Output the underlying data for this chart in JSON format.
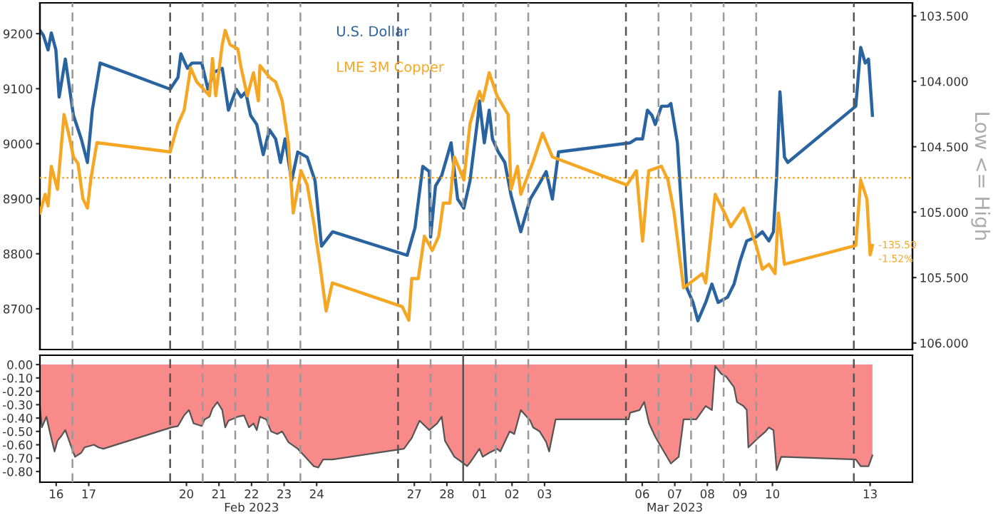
{
  "chart_data": [
    {
      "type": "line",
      "xlim": [
        "2023-02-16T00:00",
        "2023-03-14T19:12"
      ],
      "ylim": [
        8626,
        9256
      ],
      "yticks": [
        8700,
        8800,
        8900,
        9000,
        9100,
        9200
      ],
      "y2lim": [
        106.05,
        103.4
      ],
      "y2ticks": [
        {
          "value": 103.5,
          "label": "103.500"
        },
        {
          "value": 104.0,
          "label": "104.000"
        },
        {
          "value": 104.5,
          "label": "104.500"
        },
        {
          "value": 105.0,
          "label": "105.000"
        },
        {
          "value": 105.5,
          "label": "105.500"
        },
        {
          "value": 106.0,
          "label": "106.000"
        }
      ],
      "y2label": "Low <= High",
      "tick_labels": "y",
      "legend": "top",
      "series": [
        {
          "name": "U.S. Dollar",
          "color": "#2a64a0",
          "axis": "y2",
          "x": [
            "2023-02-16T00:00",
            "2023-02-16T02:38",
            "2023-02-16T06:00",
            "2023-02-16T08:24",
            "2023-02-16T11:46",
            "2023-02-16T14:10",
            "2023-02-16T18:43",
            "2023-02-17T00:43",
            "2023-02-17T06:29",
            "2023-02-17T11:02",
            "2023-02-17T14:38",
            "2023-02-17T20:24",
            "2023-02-20T00:00",
            "2023-02-20T05:46",
            "2023-02-20T07:55",
            "2023-02-20T12:43",
            "2023-02-20T16:05",
            "2023-02-20T23:17",
            "2023-02-21T03:50",
            "2023-02-21T08:24",
            "2023-02-21T14:24",
            "2023-02-21T18:58",
            "2023-02-22T00:43",
            "2023-02-22T04:19",
            "2023-02-22T07:41",
            "2023-02-22T11:17",
            "2023-02-22T15:50",
            "2023-02-22T20:38",
            "2023-02-23T01:12",
            "2023-02-23T05:46",
            "2023-02-23T09:22",
            "2023-02-23T12:43",
            "2023-02-23T17:31",
            "2023-02-23T22:05",
            "2023-02-24T05:02",
            "2023-02-24T10:48",
            "2023-02-24T15:36",
            "2023-02-24T23:46",
            "2023-02-27T06:43",
            "2023-02-27T12:29",
            "2023-02-27T18:14",
            "2023-02-27T23:02",
            "2023-02-28T00:00",
            "2023-02-28T03:36",
            "2023-02-28T08:10",
            "2023-02-28T15:07",
            "2023-02-28T19:55",
            "2023-03-01T00:29",
            "2023-03-01T05:02",
            "2023-03-01T11:02",
            "2023-03-01T12:00",
            "2023-03-01T15:36",
            "2023-03-01T19:12",
            "2023-03-01T21:36",
            "2023-03-02T01:55",
            "2023-03-02T06:43",
            "2023-03-02T11:17",
            "2023-03-02T18:29",
            "2023-03-03T01:26",
            "2023-03-03T07:12",
            "2023-03-03T13:12",
            "2023-03-03T17:46",
            "2023-03-03T22:19",
            "2023-03-06T03:07",
            "2023-03-06T07:41",
            "2023-03-06T12:14",
            "2023-03-06T15:50",
            "2023-03-06T19:12",
            "2023-03-06T21:36",
            "2023-03-07T02:10",
            "2023-03-07T06:58",
            "2023-03-07T09:07",
            "2023-03-07T13:55",
            "2023-03-07T16:05",
            "2023-03-07T20:53",
            "2023-03-08T01:26",
            "2023-03-08T05:02",
            "2023-03-08T10:48",
            "2023-03-08T15:22",
            "2023-03-08T19:55",
            "2023-03-09T02:53",
            "2023-03-09T07:41",
            "2023-03-09T12:14",
            "2023-03-09T17:02",
            "2023-03-10T00:00",
            "2023-03-10T04:34",
            "2023-03-10T09:22",
            "2023-03-10T12:43",
            "2023-03-10T15:07",
            "2023-03-10T17:31",
            "2023-03-10T20:53",
            "2023-03-10T23:17",
            "2023-03-13T01:26",
            "2023-03-13T05:02",
            "2023-03-13T08:24",
            "2023-03-13T10:48",
            "2023-03-13T13:41"
          ],
          "values": [
            103.61,
            103.65,
            103.76,
            103.63,
            103.76,
            104.12,
            103.83,
            104.26,
            104.44,
            104.62,
            104.22,
            103.86,
            104.06,
            103.97,
            103.79,
            103.9,
            103.86,
            103.86,
            104.06,
            103.93,
            103.9,
            104.22,
            104.06,
            104.12,
            104.08,
            104.26,
            104.33,
            104.56,
            104.37,
            104.44,
            104.62,
            104.44,
            104.76,
            104.54,
            104.58,
            104.76,
            105.26,
            105.15,
            105.33,
            105.12,
            104.65,
            104.69,
            105.19,
            104.8,
            104.72,
            104.47,
            104.9,
            104.97,
            104.76,
            104.26,
            104.15,
            104.47,
            104.22,
            104.44,
            104.54,
            104.62,
            104.87,
            105.15,
            104.9,
            104.8,
            104.69,
            104.9,
            104.54,
            104.47,
            104.44,
            104.44,
            104.22,
            104.26,
            104.33,
            104.19,
            104.19,
            104.17,
            104.47,
            104.83,
            105.58,
            105.69,
            105.83,
            105.69,
            105.55,
            105.69,
            105.65,
            105.55,
            105.37,
            105.22,
            105.19,
            105.15,
            105.22,
            105.15,
            104.72,
            104.08,
            104.58,
            104.62,
            104.19,
            103.74,
            103.86,
            103.83,
            104.26
          ]
        },
        {
          "name": "LME 3M Copper",
          "color": "#f5a623",
          "x": [
            "2023-02-16T00:00",
            "2023-02-16T03:50",
            "2023-02-16T06:00",
            "2023-02-16T08:24",
            "2023-02-16T12:58",
            "2023-02-16T17:46",
            "2023-02-16T21:07",
            "2023-02-17T00:43",
            "2023-02-17T04:05",
            "2023-02-17T07:41",
            "2023-02-17T11:02",
            "2023-02-17T13:26",
            "2023-02-17T18:00",
            "2023-02-20T00:00",
            "2023-02-20T05:46",
            "2023-02-20T10:19",
            "2023-02-20T15:07",
            "2023-02-20T19:41",
            "2023-02-21T00:14",
            "2023-02-21T05:02",
            "2023-02-21T07:12",
            "2023-02-21T09:36",
            "2023-02-21T14:24",
            "2023-02-21T16:34",
            "2023-02-21T20:10",
            "2023-02-22T01:55",
            "2023-02-22T04:19",
            "2023-02-22T08:53",
            "2023-02-22T13:26",
            "2023-02-22T17:02",
            "2023-02-22T18:14",
            "2023-02-23T01:12",
            "2023-02-23T05:46",
            "2023-02-23T10:34",
            "2023-02-23T15:07",
            "2023-02-23T18:43",
            "2023-02-24T00:29",
            "2023-02-24T05:02",
            "2023-02-24T09:50",
            "2023-02-24T14:24",
            "2023-02-24T18:58",
            "2023-02-24T23:31",
            "2023-02-27T03:07",
            "2023-02-27T07:55",
            "2023-02-27T10:05",
            "2023-02-27T14:53",
            "2023-02-27T19:26",
            "2023-02-28T01:12",
            "2023-02-28T06:00",
            "2023-02-28T09:22",
            "2023-02-28T14:10",
            "2023-02-28T17:31",
            "2023-03-01T00:29",
            "2023-03-01T05:02",
            "2023-03-01T12:00",
            "2023-03-01T14:24",
            "2023-03-01T19:12",
            "2023-03-02T00:58",
            "2023-03-02T09:07",
            "2023-03-02T11:17",
            "2023-03-02T16:05",
            "2023-03-02T18:29",
            "2023-03-03T03:36",
            "2023-03-03T10:34",
            "2023-03-03T17:46",
            "2023-03-06T00:43",
            "2023-03-06T07:41",
            "2023-03-06T12:14",
            "2023-03-06T16:48",
            "2023-03-07T02:10",
            "2023-03-07T06:58",
            "2023-03-07T11:31",
            "2023-03-07T18:29",
            "2023-03-08T08:24",
            "2023-03-08T10:48",
            "2023-03-08T17:46",
            "2023-03-09T00:43",
            "2023-03-09T05:17",
            "2023-03-09T14:38",
            "2023-03-10T00:00",
            "2023-03-10T04:34",
            "2023-03-10T09:22",
            "2023-03-10T13:55",
            "2023-03-10T16:19",
            "2023-03-10T20:53",
            "2023-03-13T01:26",
            "2023-03-13T05:02",
            "2023-03-13T09:36",
            "2023-03-13T12:00",
            "2023-03-13T13:41"
          ],
          "values": [
            8874,
            8908,
            8887,
            8959,
            8917,
            9053,
            9019,
            8976,
            8964,
            8900,
            8883,
            8934,
            9002,
            8985,
            9036,
            9061,
            9138,
            9112,
            9100,
            9087,
            9155,
            9087,
            9180,
            9206,
            9180,
            9172,
            9138,
            9087,
            9129,
            9078,
            9142,
            9121,
            9112,
            9078,
            9002,
            8874,
            8951,
            8925,
            8857,
            8781,
            8696,
            8747,
            8704,
            8679,
            8755,
            8755,
            8832,
            8806,
            8832,
            8892,
            8892,
            8976,
            8934,
            9036,
            9095,
            9078,
            9129,
            9087,
            9053,
            8917,
            8959,
            8908,
            8968,
            9019,
            8976,
            8925,
            8951,
            8823,
            8951,
            8959,
            8934,
            8874,
            8738,
            8764,
            8747,
            8908,
            8874,
            8849,
            8883,
            8815,
            8772,
            8781,
            8764,
            8874,
            8781,
            8815,
            8934,
            8900,
            8798,
            8815
          ]
        }
      ],
      "ref_lines": [
        {
          "axis": "y",
          "value": 8938,
          "color": "#f5a623",
          "line_style": "dotted"
        },
        {
          "axis": "x",
          "value": "2023-02-17T00:00",
          "color": "#999999",
          "line_style": "dashed"
        },
        {
          "axis": "x",
          "value": "2023-02-20T00:00",
          "color": "#555555",
          "line_style": "dashed"
        },
        {
          "axis": "x",
          "value": "2023-02-21T00:00",
          "color": "#999999",
          "line_style": "dashed"
        },
        {
          "axis": "x",
          "value": "2023-02-22T00:00",
          "color": "#999999",
          "line_style": "dashed"
        },
        {
          "axis": "x",
          "value": "2023-02-23T00:00",
          "color": "#999999",
          "line_style": "dashed"
        },
        {
          "axis": "x",
          "value": "2023-02-24T00:00",
          "color": "#999999",
          "line_style": "dashed"
        },
        {
          "axis": "x",
          "value": "2023-02-27T00:00",
          "color": "#555555",
          "line_style": "dashed"
        },
        {
          "axis": "x",
          "value": "2023-02-28T00:00",
          "color": "#999999",
          "line_style": "dashed"
        },
        {
          "axis": "x",
          "value": "2023-03-01T00:00",
          "color": "#999999",
          "line_style": "dashed"
        },
        {
          "axis": "x",
          "value": "2023-03-02T00:00",
          "color": "#999999",
          "line_style": "dashed"
        },
        {
          "axis": "x",
          "value": "2023-03-03T00:00",
          "color": "#999999",
          "line_style": "dashed"
        },
        {
          "axis": "x",
          "value": "2023-03-06T00:00",
          "color": "#555555",
          "line_style": "dashed"
        },
        {
          "axis": "x",
          "value": "2023-03-07T00:00",
          "color": "#999999",
          "line_style": "dashed"
        },
        {
          "axis": "x",
          "value": "2023-03-08T00:00",
          "color": "#999999",
          "line_style": "dashed"
        },
        {
          "axis": "x",
          "value": "2023-03-09T00:00",
          "color": "#999999",
          "line_style": "dashed"
        },
        {
          "axis": "x",
          "value": "2023-03-10T00:00",
          "color": "#999999",
          "line_style": "dashed"
        },
        {
          "axis": "x",
          "value": "2023-03-13T00:00",
          "color": "#555555",
          "line_style": "dashed"
        }
      ],
      "annotations": [
        "-135.50",
        "-1.52%"
      ]
    },
    {
      "type": "area",
      "xlim": [
        "2023-02-16T00:00",
        "2023-03-14T19:12"
      ],
      "ylim": [
        -0.88,
        0.07
      ],
      "xticks": [
        {
          "value": "2023-02-16T12:00",
          "label": "16"
        },
        {
          "value": "2023-02-17T12:00",
          "label": "17"
        },
        {
          "value": "2023-02-20T12:00",
          "label": "20"
        },
        {
          "value": "2023-02-21T12:00",
          "label": "21"
        },
        {
          "value": "2023-02-22T12:00",
          "label": "22\nFeb 2023"
        },
        {
          "value": "2023-02-23T12:00",
          "label": "23"
        },
        {
          "value": "2023-02-24T12:00",
          "label": "24"
        },
        {
          "value": "2023-02-27T12:00",
          "label": "27"
        },
        {
          "value": "2023-02-28T12:00",
          "label": "28"
        },
        {
          "value": "2023-03-01T12:00",
          "label": "01"
        },
        {
          "value": "2023-03-02T12:00",
          "label": "02"
        },
        {
          "value": "2023-03-03T12:00",
          "label": "03"
        },
        {
          "value": "2023-03-06T12:00",
          "label": "06"
        },
        {
          "value": "2023-03-07T12:00",
          "label": "07\nMar 2023"
        },
        {
          "value": "2023-03-08T12:00",
          "label": "08"
        },
        {
          "value": "2023-03-09T12:00",
          "label": "09"
        },
        {
          "value": "2023-03-10T12:00",
          "label": "10"
        },
        {
          "value": "2023-03-13T12:00",
          "label": "13"
        }
      ],
      "yticks": [
        {
          "value": 0,
          "label": "0.00"
        },
        {
          "value": -0.1,
          "label": "-0.10"
        },
        {
          "value": -0.2,
          "label": "-0.20"
        },
        {
          "value": -0.3,
          "label": "-0.30"
        },
        {
          "value": -0.4,
          "label": "-0.40"
        },
        {
          "value": -0.5,
          "label": "-0.50"
        },
        {
          "value": -0.6,
          "label": "-0.60"
        },
        {
          "value": -0.7,
          "label": "-0.70"
        },
        {
          "value": -0.8,
          "label": "-0.80"
        }
      ],
      "series": [
        {
          "color": "#f88a8a",
          "x": [
            "2023-02-16T00:00",
            "2023-02-16T01:26",
            "2023-02-16T04:48",
            "2023-02-16T07:12",
            "2023-02-16T10:48",
            "2023-02-16T12:58",
            "2023-02-16T15:22",
            "2023-02-16T18:43",
            "2023-02-17T00:43",
            "2023-02-17T01:55",
            "2023-02-17T06:29",
            "2023-02-17T08:53",
            "2023-02-17T15:50",
            "2023-02-17T19:12",
            "2023-02-17T22:48",
            "2023-02-20T00:58",
            "2023-02-20T05:46",
            "2023-02-20T10:19",
            "2023-02-20T13:55",
            "2023-02-20T17:17",
            "2023-02-20T23:17",
            "2023-02-21T01:26",
            "2023-02-21T05:02",
            "2023-02-21T07:12",
            "2023-02-21T10:48",
            "2023-02-21T14:24",
            "2023-02-21T16:34",
            "2023-02-21T18:58",
            "2023-02-22T01:55",
            "2023-02-22T06:29",
            "2023-02-22T10:05",
            "2023-02-22T13:26",
            "2023-02-22T15:50",
            "2023-02-22T18:14",
            "2023-02-22T22:48",
            "2023-02-23T02:24",
            "2023-02-23T06:58",
            "2023-02-23T10:34",
            "2023-02-23T15:07",
            "2023-02-23T22:05",
            "2023-02-24T02:38",
            "2023-02-24T09:50",
            "2023-02-24T13:12",
            "2023-02-24T16:48",
            "2023-02-24T23:46",
            "2023-02-27T04:19",
            "2023-02-27T10:05",
            "2023-02-27T15:50",
            "2023-02-27T23:02",
            "2023-02-28T04:48",
            "2023-02-28T08:10",
            "2023-02-28T10:34",
            "2023-02-28T17:31",
            "2023-03-01T00:29",
            "2023-03-01T02:53",
            "2023-03-01T05:17",
            "2023-03-01T12:00",
            "2023-03-01T14:24",
            "2023-03-01T19:12",
            "2023-03-02T00:58",
            "2023-03-02T03:22",
            "2023-03-02T10:19",
            "2023-03-02T13:41",
            "2023-03-02T18:29",
            "2023-03-03T01:26",
            "2023-03-03T03:36",
            "2023-03-03T08:24",
            "2023-03-03T13:12",
            "2023-03-03T15:22",
            "2023-03-03T20:10",
            "2023-03-06T01:55",
            "2023-03-06T03:07",
            "2023-03-06T10:05",
            "2023-03-06T13:26",
            "2023-03-06T17:02",
            "2023-03-06T21:36",
            "2023-03-07T02:10",
            "2023-03-07T09:07",
            "2023-03-07T14:53",
            "2023-03-07T18:29",
            "2023-03-08T03:50",
            "2023-03-08T10:48",
            "2023-03-08T15:22",
            "2023-03-08T17:46",
            "2023-03-08T22:19",
            "2023-03-09T01:55",
            "2023-03-09T07:41",
            "2023-03-09T09:50",
            "2023-03-09T14:38",
            "2023-03-09T17:02",
            "2023-03-09T18:14",
            "2023-03-10T02:24",
            "2023-03-10T06:58",
            "2023-03-10T09:22",
            "2023-03-10T12:43",
            "2023-03-10T15:07",
            "2023-03-10T18:29",
            "2023-03-13T01:26",
            "2023-03-13T05:02",
            "2023-03-13T10:48",
            "2023-03-13T13:41"
          ],
          "values": [
            -0.31,
            -0.47,
            -0.39,
            -0.5,
            -0.65,
            -0.57,
            -0.54,
            -0.49,
            -0.66,
            -0.69,
            -0.66,
            -0.62,
            -0.6,
            -0.62,
            -0.63,
            -0.47,
            -0.46,
            -0.38,
            -0.34,
            -0.44,
            -0.46,
            -0.41,
            -0.39,
            -0.33,
            -0.28,
            -0.34,
            -0.47,
            -0.42,
            -0.39,
            -0.38,
            -0.47,
            -0.44,
            -0.49,
            -0.39,
            -0.41,
            -0.5,
            -0.52,
            -0.5,
            -0.58,
            -0.63,
            -0.68,
            -0.76,
            -0.77,
            -0.71,
            -0.71,
            -0.63,
            -0.55,
            -0.42,
            -0.49,
            -0.44,
            -0.39,
            -0.57,
            -0.69,
            -0.74,
            -0.76,
            -0.73,
            -0.63,
            -0.69,
            -0.66,
            -0.63,
            -0.65,
            -0.5,
            -0.52,
            -0.34,
            -0.42,
            -0.47,
            -0.5,
            -0.58,
            -0.65,
            -0.41,
            -0.41,
            -0.36,
            -0.34,
            -0.28,
            -0.44,
            -0.54,
            -0.62,
            -0.74,
            -0.69,
            -0.41,
            -0.41,
            -0.31,
            -0.34,
            -0.01,
            -0.07,
            -0.09,
            -0.17,
            -0.28,
            -0.31,
            -0.34,
            -0.62,
            -0.54,
            -0.5,
            -0.47,
            -0.49,
            -0.79,
            -0.69,
            -0.71,
            -0.76,
            -0.76,
            -0.68
          ]
        }
      ],
      "ref_lines": [
        {
          "axis": "x",
          "value": "2023-02-17T00:00",
          "color": "#999999",
          "line_style": "dashed"
        },
        {
          "axis": "x",
          "value": "2023-02-20T00:00",
          "color": "#555555",
          "line_style": "dashed"
        },
        {
          "axis": "x",
          "value": "2023-02-21T00:00",
          "color": "#999999",
          "line_style": "dashed"
        },
        {
          "axis": "x",
          "value": "2023-02-22T00:00",
          "color": "#999999",
          "line_style": "dashed"
        },
        {
          "axis": "x",
          "value": "2023-02-23T00:00",
          "color": "#999999",
          "line_style": "dashed"
        },
        {
          "axis": "x",
          "value": "2023-02-24T00:00",
          "color": "#999999",
          "line_style": "dashed"
        },
        {
          "axis": "x",
          "value": "2023-02-27T00:00",
          "color": "#555555",
          "line_style": "dashed"
        },
        {
          "axis": "x",
          "value": "2023-02-28T00:00",
          "color": "#999999",
          "line_style": "dashed"
        },
        {
          "axis": "x",
          "value": "2023-03-01T00:00",
          "color": "#555555",
          "line_style": "solid"
        },
        {
          "axis": "x",
          "value": "2023-03-02T00:00",
          "color": "#999999",
          "line_style": "dashed"
        },
        {
          "axis": "x",
          "value": "2023-03-03T00:00",
          "color": "#999999",
          "line_style": "dashed"
        },
        {
          "axis": "x",
          "value": "2023-03-06T00:00",
          "color": "#555555",
          "line_style": "dashed"
        },
        {
          "axis": "x",
          "value": "2023-03-07T00:00",
          "color": "#999999",
          "line_style": "dashed"
        },
        {
          "axis": "x",
          "value": "2023-03-08T00:00",
          "color": "#999999",
          "line_style": "dashed"
        },
        {
          "axis": "x",
          "value": "2023-03-09T00:00",
          "color": "#999999",
          "line_style": "dashed"
        },
        {
          "axis": "x",
          "value": "2023-03-10T00:00",
          "color": "#999999",
          "line_style": "dashed"
        },
        {
          "axis": "x",
          "value": "2023-03-13T00:00",
          "color": "#555555",
          "line_style": "dashed"
        }
      ]
    }
  ]
}
